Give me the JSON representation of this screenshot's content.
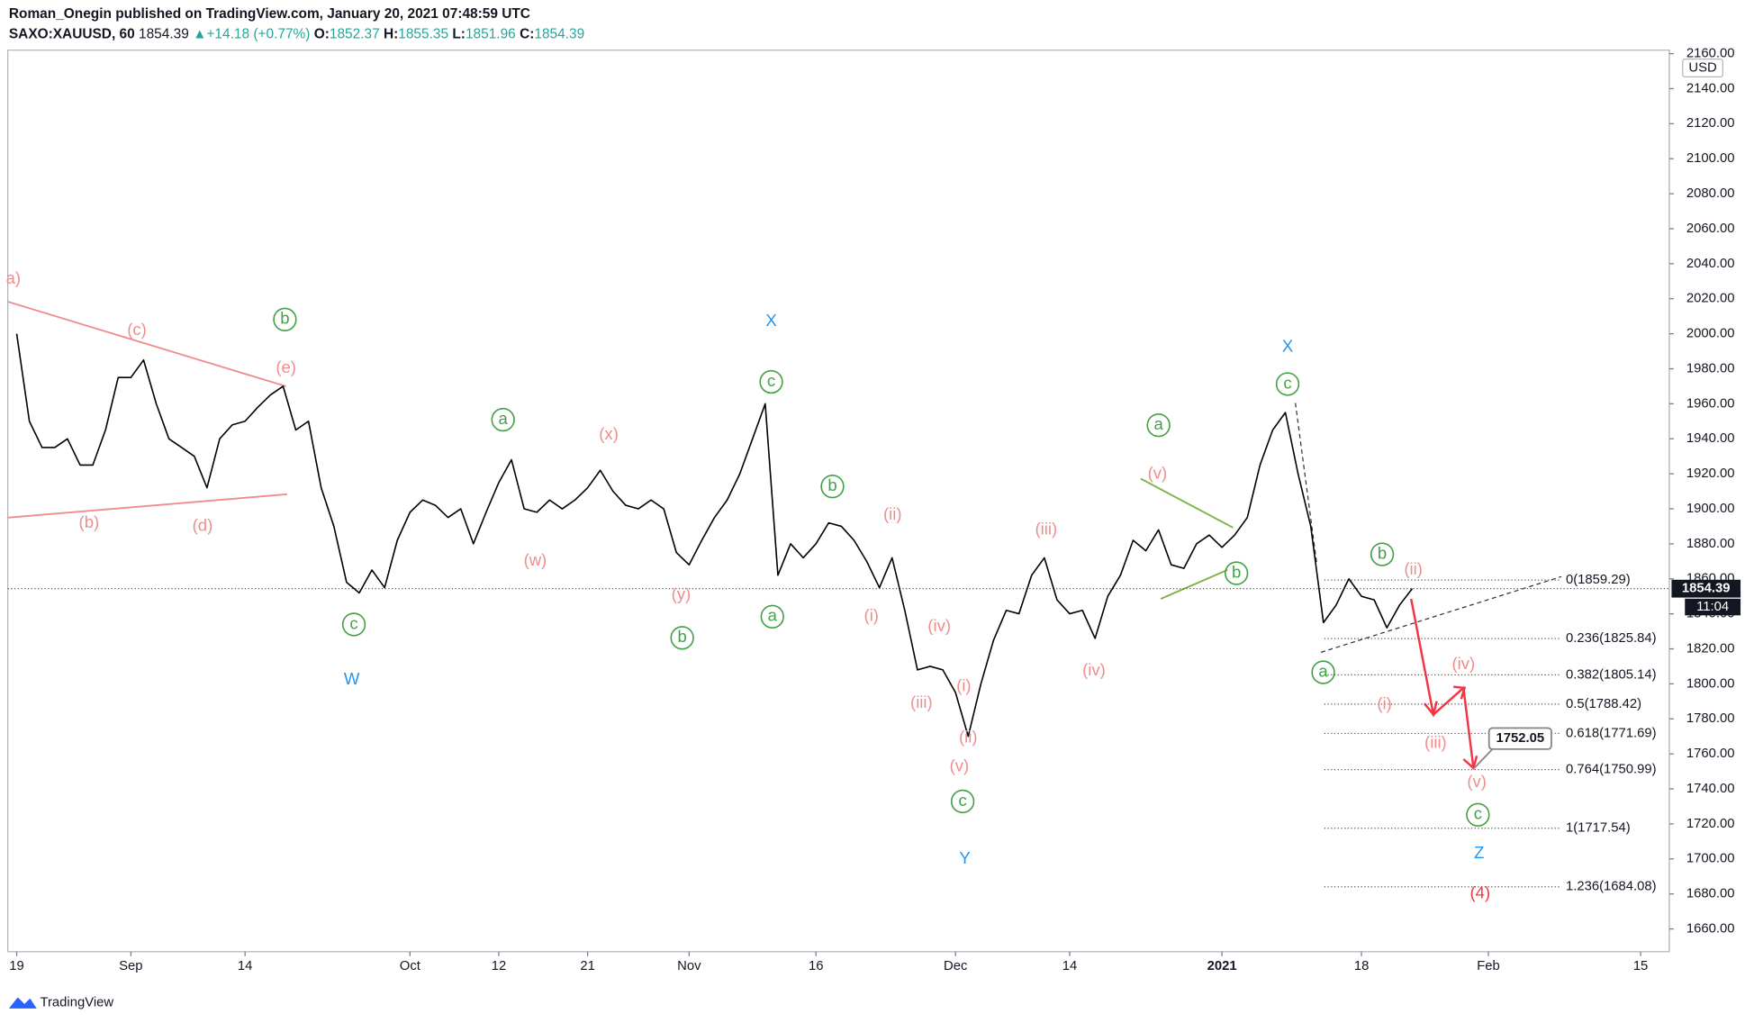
{
  "header": {
    "author_line": "Roman_Onegin published on TradingView.com, January 20, 2021 07:48:59 UTC",
    "symbol": "SAXO:XAUUSD, 60",
    "change": "+14.18 (+0.77%)",
    "ohlc": [
      {
        "label": "O:",
        "value": "1852.37"
      },
      {
        "label": "H:",
        "value": "1855.35"
      },
      {
        "label": "L:",
        "value": "1851.96"
      },
      {
        "label": "C:",
        "value": "1854.39"
      }
    ],
    "currency": "USD",
    "countdown": "11:04",
    "brand": "TradingView"
  },
  "chart_data": {
    "type": "line",
    "categories": [
      "19",
      null,
      null,
      null,
      null,
      null,
      null,
      null,
      null,
      "Sep",
      null,
      null,
      null,
      null,
      null,
      null,
      null,
      null,
      "14",
      null,
      null,
      null,
      null,
      null,
      null,
      null,
      null,
      null,
      null,
      null,
      null,
      "Oct",
      null,
      null,
      null,
      null,
      null,
      null,
      "12",
      null,
      null,
      null,
      null,
      null,
      null,
      "21",
      null,
      null,
      null,
      null,
      null,
      null,
      null,
      "Nov",
      null,
      null,
      null,
      null,
      null,
      null,
      null,
      null,
      null,
      "16",
      null,
      null,
      null,
      null,
      null,
      null,
      null,
      null,
      null,
      null,
      "Dec",
      null,
      null,
      null,
      null,
      null,
      null,
      null,
      null,
      "14",
      null,
      null,
      null,
      null,
      null,
      null,
      null,
      null,
      null,
      null,
      null,
      "2021",
      null,
      null,
      null,
      null,
      null,
      null,
      null,
      null,
      null,
      null,
      "18",
      null,
      null,
      null,
      null,
      null,
      null,
      null,
      null,
      null,
      "Feb",
      null,
      null,
      null,
      null,
      null,
      null,
      null,
      null,
      null,
      null,
      null,
      "15",
      null,
      null
    ],
    "series": [
      {
        "name": "SAXO:XAUUSD",
        "color": "#000000",
        "values": [
          2000,
          1950,
          1935,
          1935,
          1940,
          1925,
          1925,
          1945,
          1975,
          1975,
          1985,
          1960,
          1940,
          1935,
          1930,
          1912,
          1940,
          1948,
          1950,
          1958,
          1965,
          1970,
          1945,
          1950,
          1912,
          1890,
          1858,
          1852,
          1865,
          1855,
          1882,
          1898,
          1905,
          1902,
          1895,
          1900,
          1880,
          1898,
          1915,
          1928,
          1900,
          1898,
          1905,
          1900,
          1905,
          1912,
          1922,
          1910,
          1902,
          1900,
          1905,
          1900,
          1875,
          1868,
          1882,
          1895,
          1905,
          1920,
          1940,
          1960,
          1862,
          1880,
          1872,
          1880,
          1892,
          1890,
          1882,
          1870,
          1855,
          1872,
          1842,
          1808,
          1810,
          1808,
          1795,
          1770,
          1800,
          1825,
          1842,
          1840,
          1862,
          1872,
          1848,
          1840,
          1842,
          1826,
          1850,
          1862,
          1882,
          1876,
          1888,
          1868,
          1866,
          1880,
          1885,
          1878,
          1885,
          1895,
          1925,
          1945,
          1955,
          1920,
          1890,
          1835,
          1845,
          1860,
          1850,
          1848,
          1832,
          1845,
          1854.39,
          null,
          null,
          null,
          null,
          null,
          null,
          null,
          null,
          null,
          null,
          null,
          null,
          null,
          null,
          null,
          null,
          null,
          null,
          null,
          null
        ]
      }
    ],
    "last_price": 1854.39,
    "ylim": [
      1647,
      2162
    ],
    "yticks": [
      {
        "value": 1660,
        "label": "1660.00"
      },
      {
        "value": 1680,
        "label": "1680.00"
      },
      {
        "value": 1700,
        "label": "1700.00"
      },
      {
        "value": 1720,
        "label": "1720.00"
      },
      {
        "value": 1740,
        "label": "1740.00"
      },
      {
        "value": 1760,
        "label": "1760.00"
      },
      {
        "value": 1780,
        "label": "1780.00"
      },
      {
        "value": 1800,
        "label": "1800.00"
      },
      {
        "value": 1820,
        "label": "1820.00"
      },
      {
        "value": 1840,
        "label": "1840.00"
      },
      {
        "value": 1860,
        "label": "1860.00"
      },
      {
        "value": 1880,
        "label": "1880.00"
      },
      {
        "value": 1900,
        "label": "1900.00"
      },
      {
        "value": 1920,
        "label": "1920.00"
      },
      {
        "value": 1940,
        "label": "1940.00"
      },
      {
        "value": 1960,
        "label": "1960.00"
      },
      {
        "value": 1980,
        "label": "1980.00"
      },
      {
        "value": 2000,
        "label": "2000.00"
      },
      {
        "value": 2020,
        "label": "2020.00"
      },
      {
        "value": 2040,
        "label": "2040.00"
      },
      {
        "value": 2060,
        "label": "2060.00"
      },
      {
        "value": 2080,
        "label": "2080.00"
      },
      {
        "value": 2100,
        "label": "2100.00"
      },
      {
        "value": 2120,
        "label": "2120.00"
      },
      {
        "value": 2140,
        "label": "2140.00"
      },
      {
        "value": 2160,
        "label": "2160.00"
      }
    ],
    "fib_levels": [
      {
        "value": 1859.29,
        "label": "0(1859.29)"
      },
      {
        "value": 1825.84,
        "label": "0.236(1825.84)"
      },
      {
        "value": 1805.14,
        "label": "0.382(1805.14)"
      },
      {
        "value": 1788.42,
        "label": "0.5(1788.42)"
      },
      {
        "value": 1771.69,
        "label": "0.618(1771.69)"
      },
      {
        "value": 1750.99,
        "label": "0.764(1750.99)"
      },
      {
        "value": 1717.54,
        "label": "1(1717.54)"
      },
      {
        "value": 1684.08,
        "label": "1.236(1684.08)"
      }
    ],
    "target": 1752.05,
    "annotations": [
      {
        "text": "a)",
        "color": "#f08c8c"
      },
      {
        "text": "(c)",
        "color": "#f08c8c"
      },
      {
        "text": "(e)",
        "color": "#f08c8c"
      },
      {
        "text": "(b)",
        "color": "#f08c8c"
      },
      {
        "text": "(d)",
        "color": "#f08c8c"
      },
      {
        "text": "(w)",
        "color": "#f08c8c"
      },
      {
        "text": "(x)",
        "color": "#f08c8c"
      },
      {
        "text": "(y)",
        "color": "#f08c8c"
      },
      {
        "text": "(ii)",
        "color": "#f08c8c"
      },
      {
        "text": "(i)",
        "color": "#f08c8c"
      },
      {
        "text": "(iv)",
        "color": "#f08c8c"
      },
      {
        "text": "(iii)",
        "color": "#f08c8c"
      },
      {
        "text": "(i)",
        "color": "#f08c8c"
      },
      {
        "text": "(ii)",
        "color": "#f08c8c"
      },
      {
        "text": "(v)",
        "color": "#f08c8c"
      },
      {
        "text": "(iii)",
        "color": "#f08c8c"
      },
      {
        "text": "(iv)",
        "color": "#f08c8c"
      },
      {
        "text": "(v)",
        "color": "#f08c8c"
      },
      {
        "text": "(ii)",
        "color": "#f08c8c"
      },
      {
        "text": "(i)",
        "color": "#f08c8c"
      },
      {
        "text": "(iv)",
        "color": "#f08c8c"
      },
      {
        "text": "(iii)",
        "color": "#f08c8c"
      },
      {
        "text": "(v)",
        "color": "#f08c8c"
      },
      {
        "text": "b",
        "color": "#43a047",
        "circled": true
      },
      {
        "text": "a",
        "color": "#43a047",
        "circled": true
      },
      {
        "text": "c",
        "color": "#43a047",
        "circled": true
      },
      {
        "text": "c",
        "color": "#43a047",
        "circled": true
      },
      {
        "text": "b",
        "color": "#43a047",
        "circled": true
      },
      {
        "text": "b",
        "color": "#43a047",
        "circled": true
      },
      {
        "text": "a",
        "color": "#43a047",
        "circled": true
      },
      {
        "text": "a",
        "color": "#43a047",
        "circled": true
      },
      {
        "text": "b",
        "color": "#43a047",
        "circled": true
      },
      {
        "text": "c",
        "color": "#43a047",
        "circled": true
      },
      {
        "text": "c",
        "color": "#43a047",
        "circled": true
      },
      {
        "text": "b",
        "color": "#43a047",
        "circled": true
      },
      {
        "text": "a",
        "color": "#43a047",
        "circled": true
      },
      {
        "text": "c",
        "color": "#43a047",
        "circled": true
      },
      {
        "text": "X",
        "color": "#2196f3"
      },
      {
        "text": "W",
        "color": "#2196f3"
      },
      {
        "text": "Y",
        "color": "#2196f3"
      },
      {
        "text": "X",
        "color": "#2196f3"
      },
      {
        "text": "Z",
        "color": "#2196f3"
      },
      {
        "text": "(4)",
        "color": "#f23645"
      }
    ]
  }
}
